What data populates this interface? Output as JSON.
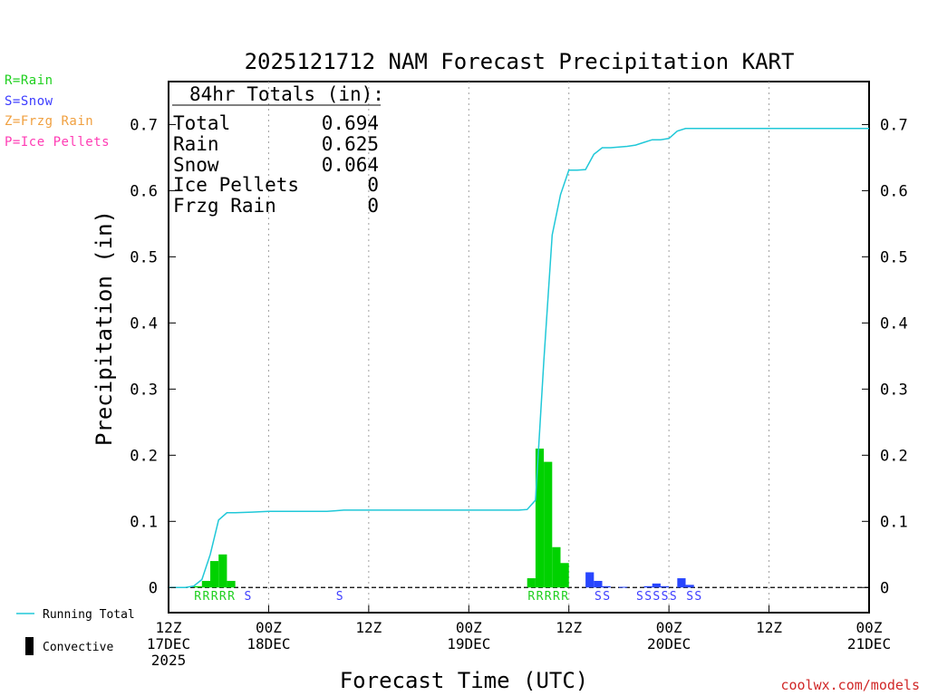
{
  "title": "2025121712 NAM Forecast Precipitation KART",
  "ylabel": "Precipitation (in)",
  "xlabel": "Forecast Time (UTC)",
  "credit": "coolwx.com/models",
  "legend_types": [
    {
      "label": "R=Rain",
      "color": "#20d020"
    },
    {
      "label": "S=Snow",
      "color": "#3c3cff"
    },
    {
      "label": "Z=Frzg Rain",
      "color": "#f0a040"
    },
    {
      "label": "P=Ice Pellets",
      "color": "#ff3cb4"
    }
  ],
  "legend_bottom": {
    "running_total": "Running Total",
    "convective": "Convective"
  },
  "totals": {
    "header": "84hr Totals (in):",
    "rows": [
      {
        "label": "Total",
        "value": "0.694"
      },
      {
        "label": "Rain",
        "value": "0.625"
      },
      {
        "label": "Snow",
        "value": "0.064"
      },
      {
        "label": "Ice Pellets",
        "value": "0"
      },
      {
        "label": "Frzg Rain",
        "value": "0"
      }
    ]
  },
  "chart_data": {
    "type": "bar",
    "title": "2025121712 NAM Forecast Precipitation KART",
    "xlabel": "Forecast Time (UTC)",
    "ylabel": "Precipitation (in)",
    "units": "forecast hour",
    "xlim": [
      0,
      84
    ],
    "ylim": [
      -0.038,
      0.765
    ],
    "yticks": [
      0,
      0.1,
      0.2,
      0.3,
      0.4,
      0.5,
      0.6,
      0.7
    ],
    "ytick_labels": [
      "0",
      "0.1",
      "0.2",
      "0.3",
      "0.4",
      "0.5",
      "0.6",
      "0.7"
    ],
    "xticks": [
      {
        "hour": 0,
        "label": [
          "12Z",
          "17DEC",
          "2025"
        ]
      },
      {
        "hour": 12,
        "label": [
          "00Z",
          "18DEC"
        ]
      },
      {
        "hour": 24,
        "label": [
          "12Z"
        ]
      },
      {
        "hour": 36,
        "label": [
          "00Z",
          "19DEC"
        ]
      },
      {
        "hour": 48,
        "label": [
          "12Z"
        ]
      },
      {
        "hour": 60,
        "label": [
          "00Z",
          "20DEC"
        ]
      },
      {
        "hour": 72,
        "label": [
          "12Z"
        ]
      },
      {
        "hour": 84,
        "label": [
          "00Z",
          "21DEC"
        ]
      }
    ],
    "bar_width_hours": 1,
    "series": [
      {
        "name": "Rain",
        "color": "#00d200",
        "bars": [
          {
            "hour": 4,
            "value": 0.002
          },
          {
            "hour": 5,
            "value": 0.01
          },
          {
            "hour": 6,
            "value": 0.04
          },
          {
            "hour": 7,
            "value": 0.05
          },
          {
            "hour": 8,
            "value": 0.01
          },
          {
            "hour": 44,
            "value": 0.014
          },
          {
            "hour": 45,
            "value": 0.21
          },
          {
            "hour": 46,
            "value": 0.19
          },
          {
            "hour": 47,
            "value": 0.061
          },
          {
            "hour": 48,
            "value": 0.037
          }
        ]
      },
      {
        "name": "Snow",
        "color": "#2846ff",
        "bars": [
          {
            "hour": 51,
            "value": 0.023
          },
          {
            "hour": 52,
            "value": 0.01
          },
          {
            "hour": 53,
            "value": 0.002
          },
          {
            "hour": 55,
            "value": 0.001
          },
          {
            "hour": 58,
            "value": 0.002
          },
          {
            "hour": 59,
            "value": 0.006
          },
          {
            "hour": 60,
            "value": 0.002
          },
          {
            "hour": 62,
            "value": 0.014
          },
          {
            "hour": 63,
            "value": 0.004
          }
        ]
      }
    ],
    "running_total": {
      "name": "Running Total",
      "color": "#20c8d8",
      "points": [
        [
          0,
          0
        ],
        [
          1,
          0
        ],
        [
          2,
          0
        ],
        [
          3,
          0.002
        ],
        [
          4,
          0.012
        ],
        [
          5,
          0.05
        ],
        [
          6,
          0.102
        ],
        [
          7,
          0.113
        ],
        [
          8,
          0.113
        ],
        [
          10,
          0.114
        ],
        [
          12,
          0.115
        ],
        [
          19,
          0.115
        ],
        [
          20,
          0.116
        ],
        [
          21,
          0.117
        ],
        [
          24,
          0.117
        ],
        [
          30,
          0.117
        ],
        [
          36,
          0.117
        ],
        [
          40,
          0.117
        ],
        [
          42,
          0.117
        ],
        [
          43,
          0.118
        ],
        [
          44,
          0.132
        ],
        [
          45,
          0.343
        ],
        [
          46,
          0.533
        ],
        [
          47,
          0.594
        ],
        [
          48,
          0.631
        ],
        [
          49,
          0.631
        ],
        [
          50,
          0.632
        ],
        [
          51,
          0.655
        ],
        [
          52,
          0.665
        ],
        [
          53,
          0.665
        ],
        [
          54,
          0.666
        ],
        [
          55,
          0.667
        ],
        [
          56,
          0.669
        ],
        [
          57,
          0.673
        ],
        [
          58,
          0.677
        ],
        [
          59,
          0.677
        ],
        [
          60,
          0.679
        ],
        [
          61,
          0.69
        ],
        [
          62,
          0.694
        ],
        [
          66,
          0.694
        ],
        [
          72,
          0.694
        ],
        [
          84,
          0.694
        ]
      ]
    },
    "type_markers": [
      {
        "hour": 3.5,
        "text": "R",
        "color": "#20d020"
      },
      {
        "hour": 4.5,
        "text": "R",
        "color": "#20d020"
      },
      {
        "hour": 5.5,
        "text": "R",
        "color": "#20d020"
      },
      {
        "hour": 6.5,
        "text": "R",
        "color": "#20d020"
      },
      {
        "hour": 7.5,
        "text": "R",
        "color": "#20d020"
      },
      {
        "hour": 9.5,
        "text": "S",
        "color": "#3c3cff"
      },
      {
        "hour": 20.5,
        "text": "S",
        "color": "#3c3cff"
      },
      {
        "hour": 43.5,
        "text": "R",
        "color": "#20d020"
      },
      {
        "hour": 44.5,
        "text": "R",
        "color": "#20d020"
      },
      {
        "hour": 45.5,
        "text": "R",
        "color": "#20d020"
      },
      {
        "hour": 46.5,
        "text": "R",
        "color": "#20d020"
      },
      {
        "hour": 47.5,
        "text": "R",
        "color": "#20d020"
      },
      {
        "hour": 51.5,
        "text": "S",
        "color": "#3c3cff"
      },
      {
        "hour": 52.5,
        "text": "S",
        "color": "#3c3cff"
      },
      {
        "hour": 56.5,
        "text": "S",
        "color": "#3c3cff"
      },
      {
        "hour": 57.5,
        "text": "S",
        "color": "#3c3cff"
      },
      {
        "hour": 58.5,
        "text": "S",
        "color": "#3c3cff"
      },
      {
        "hour": 59.5,
        "text": "S",
        "color": "#3c3cff"
      },
      {
        "hour": 60.5,
        "text": "S",
        "color": "#3c3cff"
      },
      {
        "hour": 62.5,
        "text": "S",
        "color": "#3c3cff"
      },
      {
        "hour": 63.5,
        "text": "S",
        "color": "#3c3cff"
      }
    ]
  }
}
